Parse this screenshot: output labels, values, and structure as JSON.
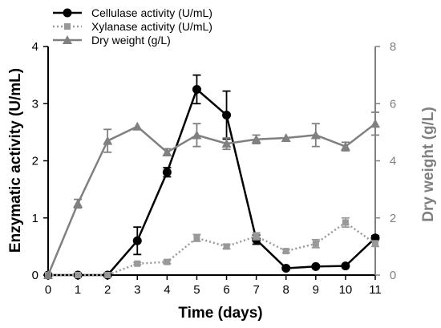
{
  "chart_data": {
    "type": "line",
    "xlabel": "Time (days)",
    "ylabel": "Enzymatic activity (U/mL)",
    "y2label": "Dry weight (g/L)",
    "x": [
      0,
      1,
      2,
      3,
      4,
      5,
      6,
      7,
      8,
      9,
      10,
      11
    ],
    "xlim": [
      0,
      11
    ],
    "ylim": [
      0,
      4
    ],
    "y2lim": [
      0,
      8
    ],
    "xticks": [
      "0",
      "1",
      "2",
      "3",
      "4",
      "5",
      "6",
      "7",
      "8",
      "9",
      "10",
      "11"
    ],
    "yticks": [
      "0",
      "1",
      "2",
      "3",
      "4"
    ],
    "y2ticks": [
      "0",
      "2",
      "4",
      "6",
      "8"
    ],
    "legend_position": "top-left",
    "series": [
      {
        "name": "Cellulase activity (U/mL)",
        "axis": "left",
        "color": "#000000",
        "marker": "circle",
        "line": "solid",
        "values": [
          0,
          0,
          0,
          0.6,
          1.8,
          3.25,
          2.8,
          0.62,
          0.12,
          0.15,
          0.16,
          0.65
        ],
        "errors": [
          0,
          0,
          0,
          0.24,
          0.08,
          0.25,
          0.42,
          0.08,
          0.02,
          0.02,
          0.02,
          0.04
        ]
      },
      {
        "name": "Xylanase activity (U/mL)",
        "axis": "left",
        "color": "#999999",
        "marker": "square",
        "line": "dotted",
        "values": [
          0,
          0,
          0,
          0.2,
          0.23,
          0.65,
          0.5,
          0.68,
          0.42,
          0.55,
          0.92,
          0.55
        ],
        "errors": [
          0,
          0,
          0,
          0.02,
          0.03,
          0.06,
          0.04,
          0.06,
          0.03,
          0.07,
          0.08,
          0.05
        ]
      },
      {
        "name": "Dry weight (g/L)",
        "axis": "right",
        "color": "#808080",
        "marker": "triangle",
        "line": "solid",
        "values": [
          0,
          2.5,
          4.7,
          5.2,
          4.3,
          4.9,
          4.6,
          4.75,
          4.8,
          4.9,
          4.5,
          5.3
        ],
        "errors": [
          0,
          0.15,
          0.4,
          0,
          0.12,
          0.4,
          0.2,
          0.15,
          0,
          0.4,
          0.15,
          0.4
        ]
      }
    ]
  }
}
